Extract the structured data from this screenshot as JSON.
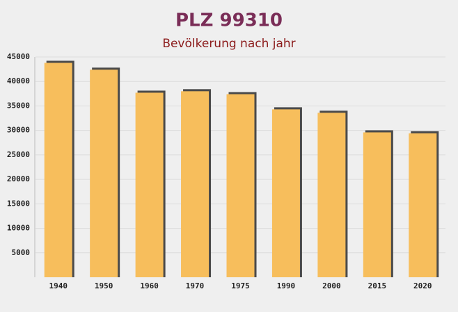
{
  "chart_data": {
    "type": "bar",
    "title": "PLZ 99310",
    "subtitle": "Bevölkerung nach jahr",
    "categories": [
      "1940",
      "1950",
      "1960",
      "1970",
      "1975",
      "1990",
      "2000",
      "2015",
      "2020"
    ],
    "values": [
      43800,
      42400,
      37700,
      38000,
      37400,
      34300,
      33600,
      29600,
      29400
    ],
    "color": "#f7be5c",
    "ylim": [
      0,
      45000
    ],
    "yticks": [
      5000,
      10000,
      15000,
      20000,
      25000,
      30000,
      35000,
      40000,
      45000
    ],
    "grid": true
  }
}
